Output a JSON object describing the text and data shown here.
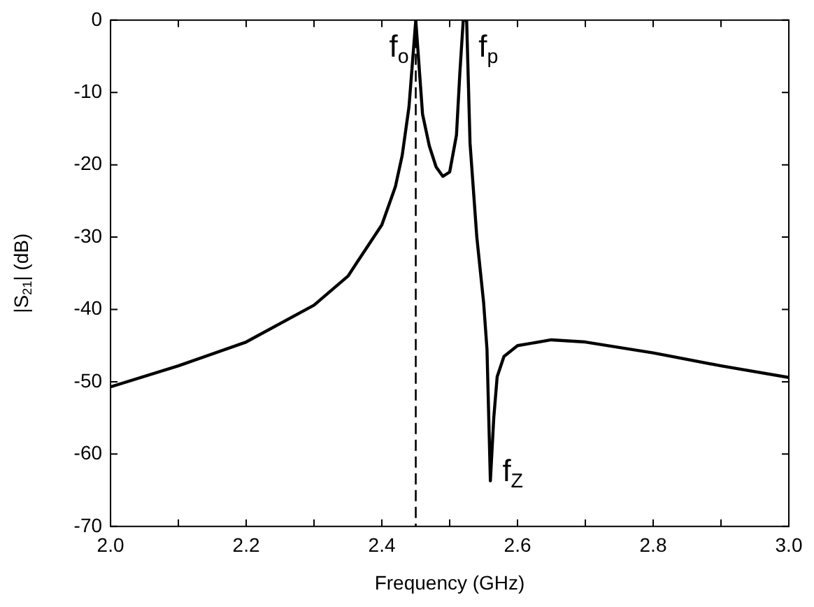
{
  "chart_data": {
    "type": "line",
    "xlabel": "Frequency (GHz)",
    "ylabel": "|S$_{21}$| (dB)",
    "x": [
      2.0,
      2.1,
      2.2,
      2.3,
      2.35,
      2.4,
      2.42,
      2.43,
      2.44,
      2.45,
      2.46,
      2.47,
      2.48,
      2.49,
      2.5,
      2.51,
      2.515,
      2.52,
      2.525,
      2.53,
      2.54,
      2.55,
      2.555,
      2.56,
      2.565,
      2.57,
      2.58,
      2.6,
      2.65,
      2.7,
      2.8,
      2.9,
      3.0
    ],
    "series": [
      {
        "color": "#000000",
        "values": [
          -50.7,
          -47.8,
          -44.5,
          -39.4,
          -35.4,
          -28.3,
          -23,
          -18.7,
          -12,
          0,
          -13,
          -17.4,
          -20.3,
          -21.6,
          -21,
          -15.9,
          -7.3,
          0,
          0,
          -17,
          -30,
          -39,
          -45.5,
          -63.7,
          -55,
          -49.3,
          -46.5,
          -45,
          -44.2,
          -44.5,
          -46,
          -47.8,
          -49.4
        ]
      }
    ],
    "xlim": [
      2.0,
      3.0
    ],
    "xticks": [
      {
        "value": 2.0,
        "label": "2.0"
      },
      {
        "value": 2.1,
        "label": null
      },
      {
        "value": 2.2,
        "label": "2.2"
      },
      {
        "value": 2.3,
        "label": null
      },
      {
        "value": 2.4,
        "label": "2.4"
      },
      {
        "value": 2.5,
        "label": null
      },
      {
        "value": 2.6,
        "label": "2.6"
      },
      {
        "value": 2.7,
        "label": null
      },
      {
        "value": 2.8,
        "label": "2.8"
      },
      {
        "value": 2.9,
        "label": null
      },
      {
        "value": 3.0,
        "label": "3.0"
      }
    ],
    "ylim": [
      -70,
      0
    ],
    "yticks": [
      0,
      -10,
      -20,
      -30,
      -40,
      -50,
      -60,
      -70
    ],
    "ref_lines": [
      {
        "axis": "x",
        "value": 2.45,
        "color": "#000000",
        "line_style": "dashed"
      }
    ],
    "annotations": [
      {
        "text": "f$_{o}$",
        "x": 2.45,
        "y": 0
      },
      {
        "text": "f$_{p}$",
        "x": 2.52,
        "y": 0
      },
      {
        "text": "f$_{Z}$",
        "x": 2.56,
        "y": -63.7
      }
    ],
    "grid": false,
    "legend": false,
    "marker": "none",
    "line_style": "solid"
  }
}
